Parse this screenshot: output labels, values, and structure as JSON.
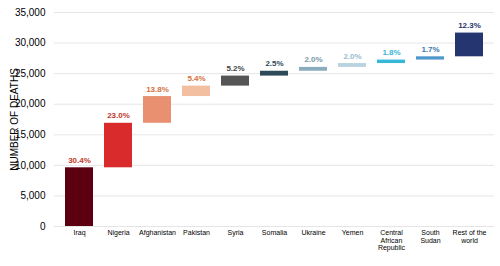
{
  "chart_data": {
    "type": "waterfall",
    "categories": [
      "Iraq",
      "Nigeria",
      "Afghanistan",
      "Pakistan",
      "Syria",
      "Somalia",
      "Ukraine",
      "Yemen",
      "Central\nAfrican\nRepublic",
      "South\nSudan",
      "Rest of the\nworld"
    ],
    "values": [
      9600,
      7280,
      4370,
      1710,
      1640,
      790,
      630,
      630,
      570,
      535,
      3880
    ],
    "percentages": [
      "30.4%",
      "23.0%",
      "13.8%",
      "5.4%",
      "5.2%",
      "2.5%",
      "2.0%",
      "2.0%",
      "1.8%",
      "1.7%",
      "12.3%"
    ],
    "colors": [
      "#5c0011",
      "#d92b2b",
      "#e89070",
      "#f2bfa0",
      "#555555",
      "#2d4a58",
      "#8aacbc",
      "#b8d4e0",
      "#38b8d8",
      "#5098cc",
      "#253570"
    ],
    "label_colors": [
      "#c0392b",
      "#c0392b",
      "#d4703a",
      "#d4703a",
      "#444444",
      "#2d4a58",
      "#7a9aaa",
      "#9abccc",
      "#38b8d8",
      "#3a78b0",
      "#253570"
    ],
    "ylabel": "NUMBER OF DEATHS",
    "ylim": [
      0,
      35000
    ],
    "yticks": [
      0,
      {
        "value": 5000,
        "label": "5,000"
      },
      {
        "value": 10000,
        "label": "10,000"
      },
      {
        "value": 15000,
        "label": "15,000"
      },
      {
        "value": 20000,
        "label": "20,000"
      },
      {
        "value": 25000,
        "label": "25,000"
      },
      {
        "value": 30000,
        "label": "30,000"
      },
      {
        "value": 35000,
        "label": "35,000"
      }
    ],
    "grid": true
  }
}
